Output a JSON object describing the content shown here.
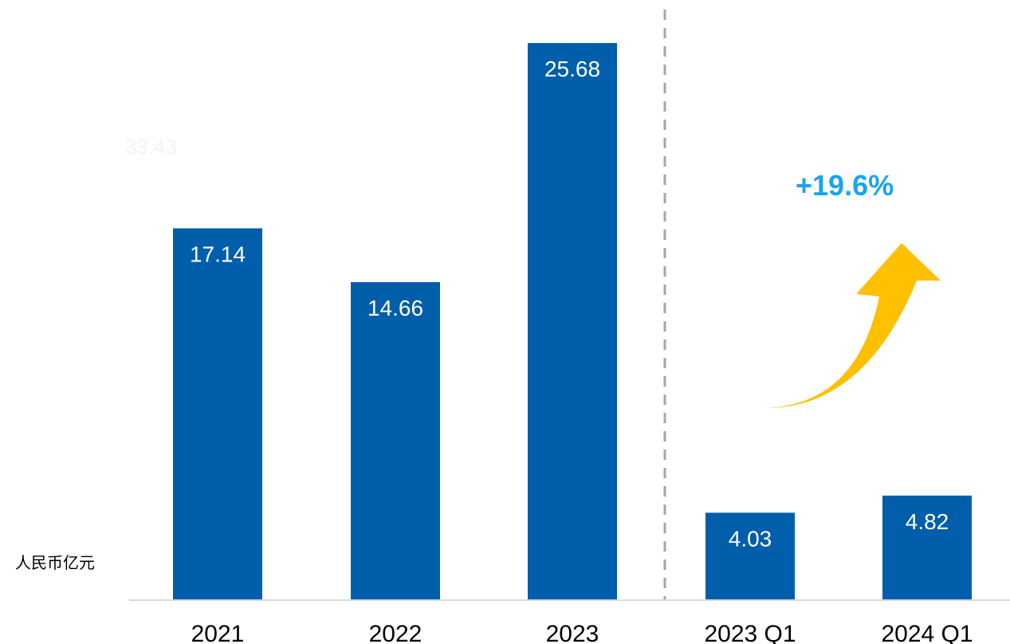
{
  "chart_data": {
    "type": "bar",
    "categories": [
      "2021",
      "2022",
      "2023",
      "2023 Q1",
      "2024 Q1"
    ],
    "values": [
      17.14,
      14.66,
      25.68,
      4.03,
      4.82
    ],
    "value_labels": [
      "17.14",
      "14.66",
      "25.68",
      "4.03",
      "4.82"
    ],
    "faint_label": "33.43",
    "unit_label": "人民币亿元",
    "growth_label": "+19.6%",
    "ylim": [
      0,
      25.68
    ],
    "grid": false,
    "legend": "none"
  },
  "colors": {
    "bar": "#005EAA",
    "growth_text": "#1AA3F0",
    "arrow": "#FFC000",
    "divider": "#A6A6A6",
    "axis": "#D9D9D9",
    "bar_label": "#FFFFFF",
    "faint_label": "#F3F3F3"
  }
}
